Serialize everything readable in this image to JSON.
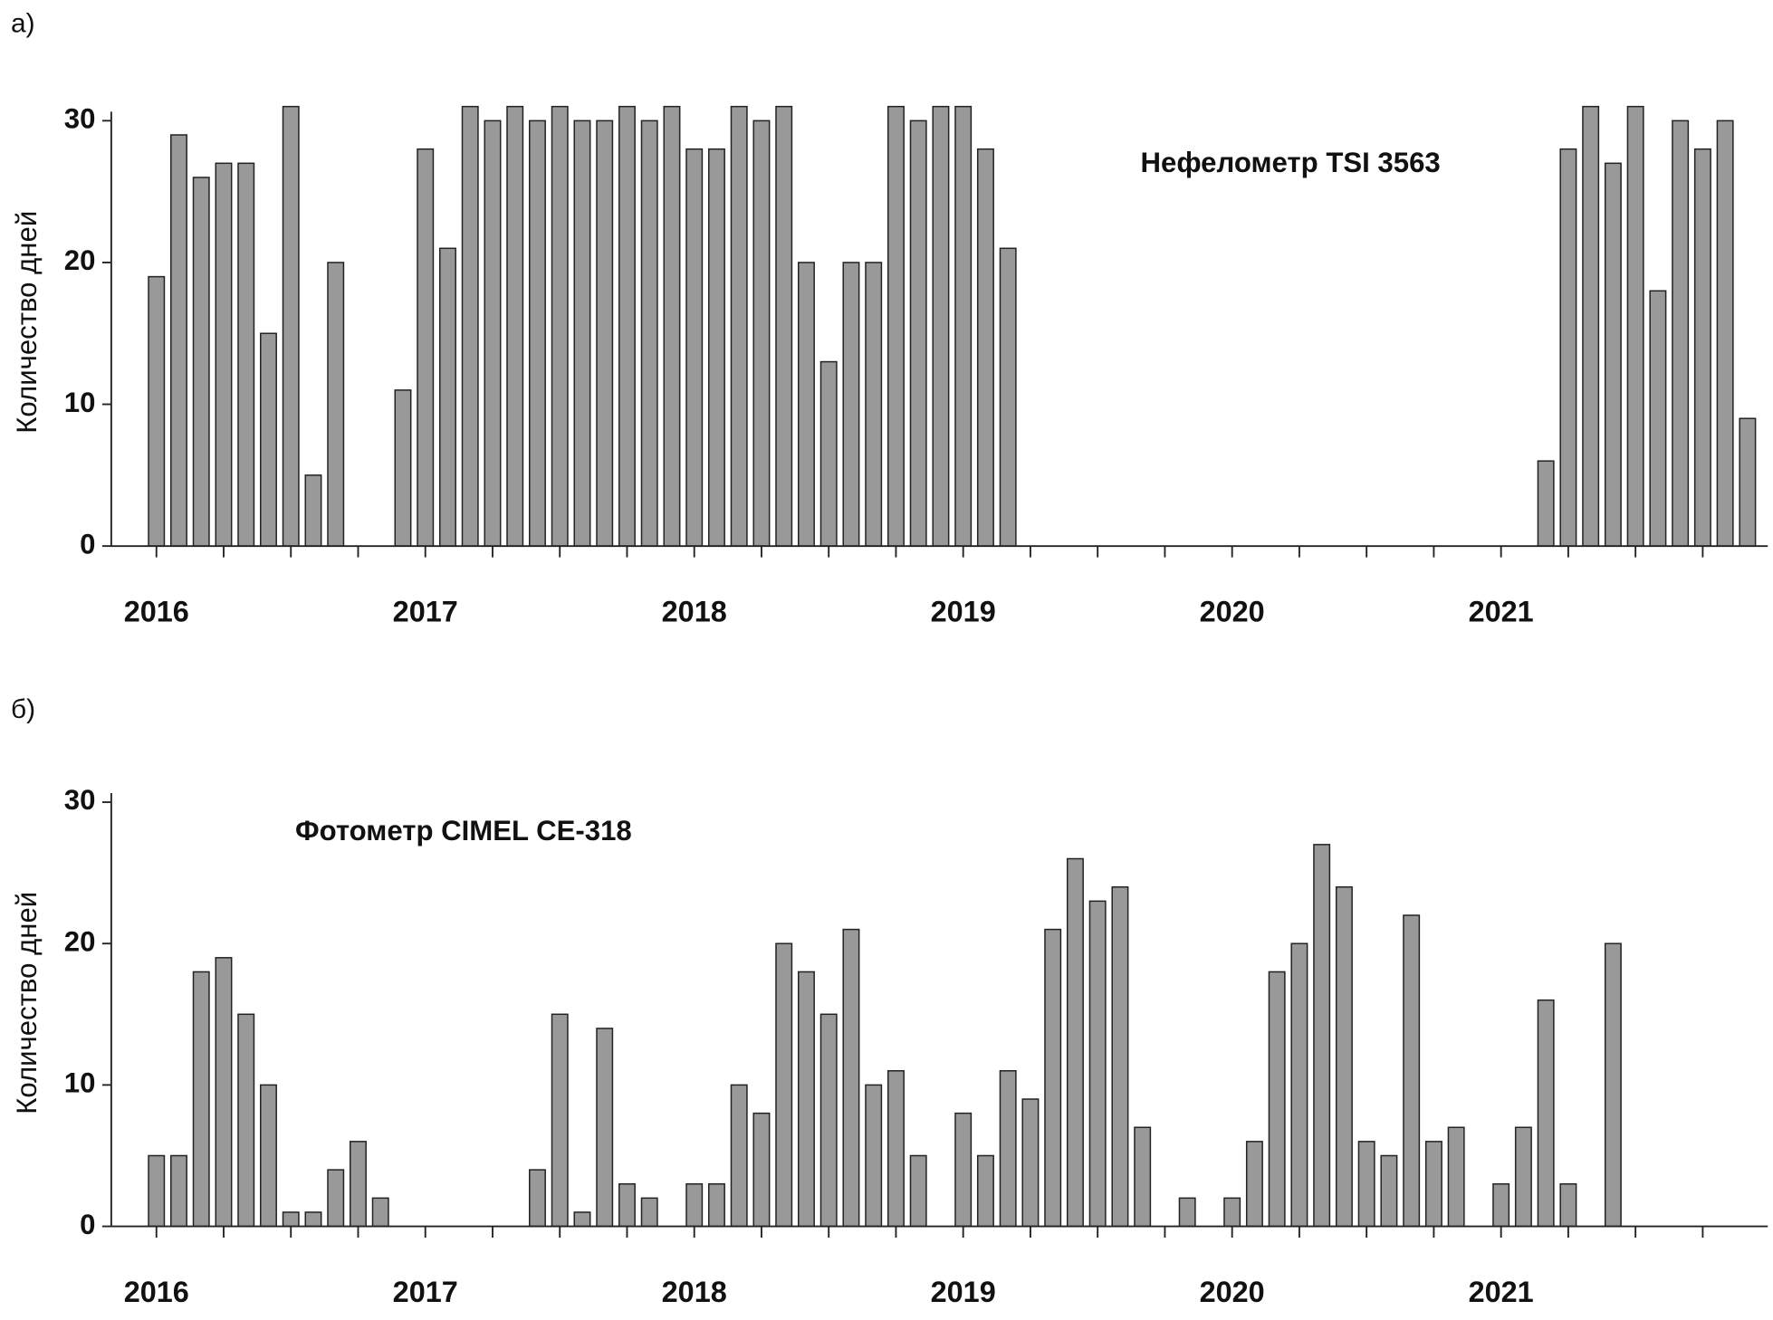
{
  "chart_data": [
    {
      "type": "bar",
      "panel": "а)",
      "title": "Нефелометр TSI 3563",
      "y_label": "Количество дней",
      "categories": [
        "2016",
        null,
        null,
        null,
        null,
        null,
        null,
        null,
        null,
        null,
        null,
        null,
        "2017",
        null,
        null,
        null,
        null,
        null,
        null,
        null,
        null,
        null,
        null,
        null,
        "2018",
        null,
        null,
        null,
        null,
        null,
        null,
        null,
        null,
        null,
        null,
        null,
        "2019",
        null,
        null,
        null,
        null,
        null,
        null,
        null,
        null,
        null,
        null,
        null,
        "2020",
        null,
        null,
        null,
        null,
        null,
        null,
        null,
        null,
        null,
        null,
        null,
        "2021",
        null,
        null,
        null,
        null,
        null,
        null,
        null,
        null,
        null,
        null,
        null
      ],
      "values": [
        19,
        29,
        26,
        27,
        27,
        15,
        31,
        5,
        20,
        null,
        null,
        11,
        28,
        21,
        31,
        30,
        31,
        30,
        31,
        30,
        30,
        31,
        30,
        31,
        28,
        28,
        31,
        30,
        31,
        20,
        13,
        20,
        20,
        31,
        30,
        31,
        31,
        28,
        21,
        null,
        null,
        null,
        null,
        null,
        null,
        null,
        null,
        null,
        null,
        null,
        null,
        null,
        null,
        null,
        null,
        null,
        null,
        null,
        null,
        null,
        null,
        null,
        6,
        28,
        31,
        27,
        31,
        18,
        30,
        28,
        30,
        9
      ],
      "color": "#999999",
      "ylim": [
        0,
        30
      ],
      "yticks": [
        0,
        10,
        20,
        30
      ]
    },
    {
      "type": "bar",
      "panel": "б)",
      "title": "Фотометр CIMEL CE-318",
      "y_label": "Количество дней",
      "categories": [
        "2016",
        null,
        null,
        null,
        null,
        null,
        null,
        null,
        null,
        null,
        null,
        null,
        "2017",
        null,
        null,
        null,
        null,
        null,
        null,
        null,
        null,
        null,
        null,
        null,
        "2018",
        null,
        null,
        null,
        null,
        null,
        null,
        null,
        null,
        null,
        null,
        null,
        "2019",
        null,
        null,
        null,
        null,
        null,
        null,
        null,
        null,
        null,
        null,
        null,
        "2020",
        null,
        null,
        null,
        null,
        null,
        null,
        null,
        null,
        null,
        null,
        null,
        "2021",
        null,
        null,
        null,
        null,
        null,
        null,
        null,
        null,
        null,
        null,
        null
      ],
      "values": [
        5,
        5,
        18,
        19,
        15,
        10,
        1,
        1,
        4,
        6,
        2,
        null,
        null,
        null,
        null,
        null,
        null,
        4,
        15,
        1,
        14,
        3,
        2,
        null,
        3,
        3,
        10,
        8,
        20,
        18,
        15,
        21,
        10,
        11,
        5,
        null,
        8,
        5,
        11,
        9,
        21,
        26,
        23,
        24,
        7,
        null,
        2,
        null,
        2,
        6,
        18,
        20,
        27,
        24,
        6,
        5,
        22,
        6,
        7,
        null,
        3,
        7,
        16,
        3,
        null,
        20,
        null,
        null,
        null,
        null,
        null,
        null
      ],
      "color": "#999999",
      "ylim": [
        0,
        30
      ],
      "yticks": [
        0,
        10,
        20,
        30
      ]
    }
  ]
}
